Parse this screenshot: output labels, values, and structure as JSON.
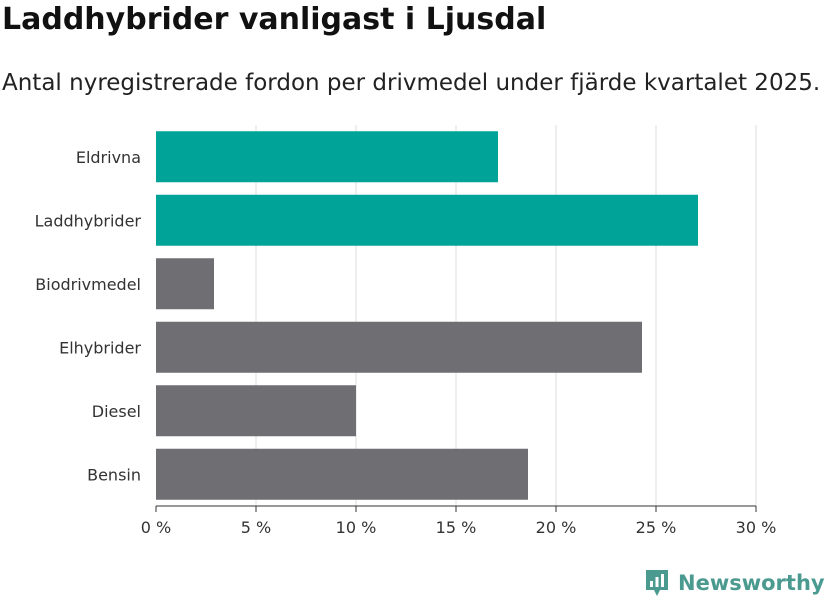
{
  "header": {
    "title": "Laddhybrider vanligast i Ljusdal",
    "subtitle": "Antal nyregistrerade fordon per drivmedel under fjärde kvartalet 2025."
  },
  "brand": {
    "name": "Newsworthy",
    "color": "#4a9a90"
  },
  "colors": {
    "highlight": "#00a398",
    "other": "#6f6e73",
    "grid": "#dddddd",
    "axis": "#333333"
  },
  "chart_data": {
    "type": "bar",
    "orientation": "horizontal",
    "title": "Laddhybrider vanligast i Ljusdal",
    "subtitle": "Antal nyregistrerade fordon per drivmedel under fjärde kvartalet 2025.",
    "xlabel": "",
    "ylabel": "",
    "categories": [
      "Eldrivna",
      "Laddhybrider",
      "Biodrivmedel",
      "Elhybrider",
      "Diesel",
      "Bensin"
    ],
    "values": [
      17.1,
      27.1,
      2.9,
      24.3,
      10.0,
      18.6
    ],
    "highlighted": [
      true,
      true,
      false,
      false,
      false,
      false
    ],
    "xlim": [
      0,
      30
    ],
    "xticks": [
      0,
      5,
      10,
      15,
      20,
      25,
      30
    ],
    "xtick_labels": [
      "0 %",
      "5 %",
      "10 %",
      "15 %",
      "20 %",
      "25 %",
      "30 %"
    ],
    "grid": true
  }
}
